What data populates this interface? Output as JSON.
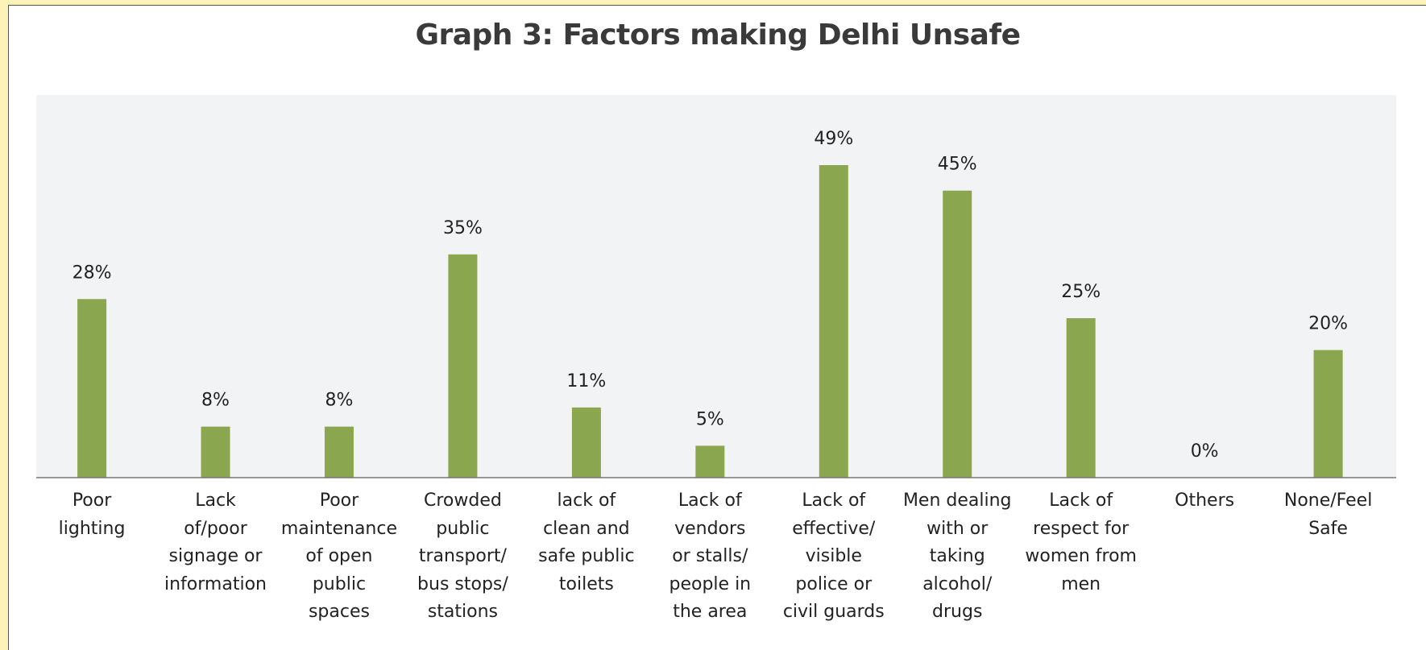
{
  "chart_data": {
    "type": "bar",
    "title": "Graph 3: Factors making Delhi Unsafe",
    "categories": [
      "Poor lighting",
      "Lack of/poor signage or information",
      "Poor maintenance of open public spaces",
      "Crowded public transport/ bus stops/ stations",
      "lack of clean and safe public toilets",
      "Lack of vendors or stalls/ people in the area",
      "Lack of effective/ visible police or civil guards",
      "Men dealing with or taking alcohol/ drugs",
      "Lack of respect for women from men",
      "Others",
      "None/Feel Safe"
    ],
    "category_lines": [
      [
        "Poor",
        "lighting"
      ],
      [
        "Lack",
        "of/poor",
        "signage or",
        "information"
      ],
      [
        "Poor",
        "maintenance",
        "of open",
        "public",
        "spaces"
      ],
      [
        "Crowded",
        "public",
        "transport/",
        "bus stops/",
        "stations"
      ],
      [
        "lack of",
        "clean and",
        "safe public",
        "toilets"
      ],
      [
        "Lack of",
        "vendors",
        "or stalls/",
        "people in",
        "the area"
      ],
      [
        "Lack of",
        "effective/",
        "visible",
        "police or",
        "civil guards"
      ],
      [
        "Men dealing",
        "with or",
        "taking",
        "alcohol/",
        "drugs"
      ],
      [
        "Lack of",
        "respect for",
        "women from",
        "men"
      ],
      [
        "Others"
      ],
      [
        "None/Feel",
        "Safe"
      ]
    ],
    "values": [
      28,
      8,
      8,
      35,
      11,
      5,
      49,
      45,
      25,
      0,
      20
    ],
    "data_labels": [
      "28%",
      "8%",
      "8%",
      "35%",
      "11%",
      "5%",
      "49%",
      "45%",
      "25%",
      "0%",
      "20%"
    ],
    "value_unit": "%",
    "xlabel": "",
    "ylabel": "",
    "ylim": [
      0,
      55
    ],
    "grid": false,
    "bar_color": "#8aa64e",
    "plot_background": "#f2f3f4"
  }
}
